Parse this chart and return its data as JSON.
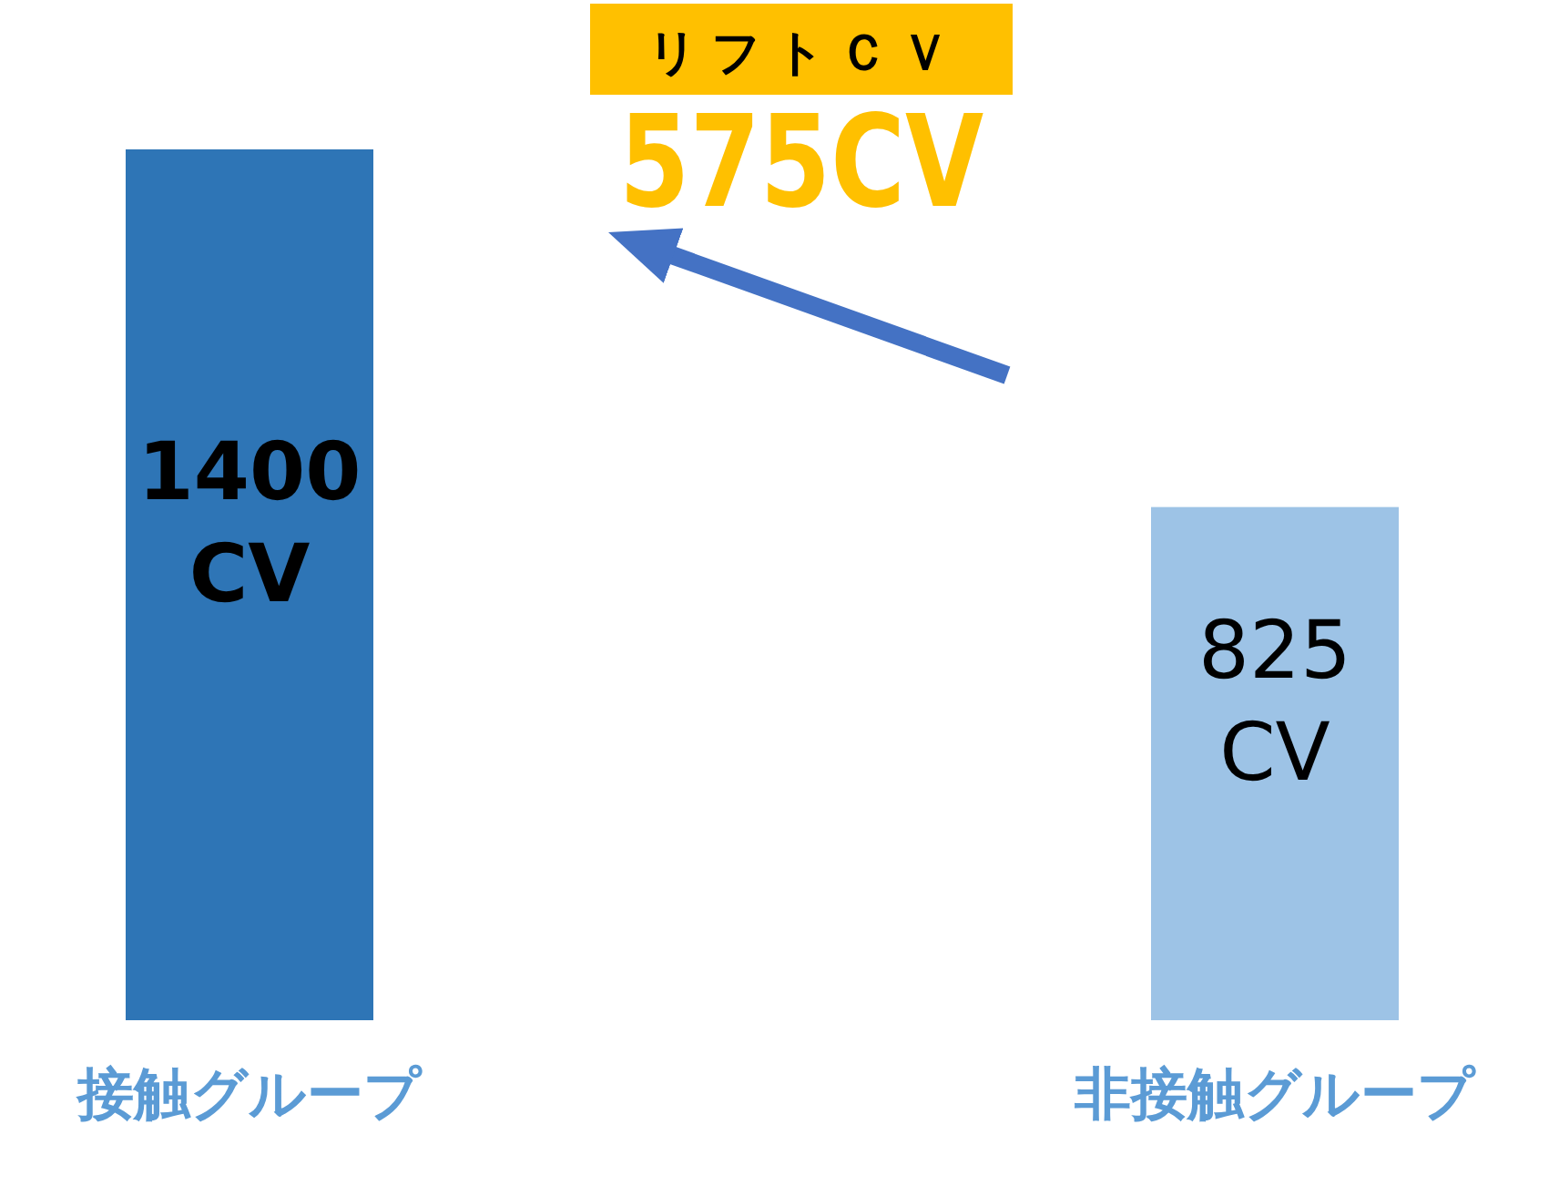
{
  "chart_data": {
    "type": "bar",
    "categories": [
      "接触グループ",
      "非接触グループ"
    ],
    "values": [
      1400,
      825
    ],
    "colors": [
      "#2e75b6",
      "#9dc3e6"
    ],
    "value_labels": [
      "1400 CV",
      "825 CV"
    ],
    "annotations": [
      "リフトＣＶ",
      "575CV"
    ]
  }
}
